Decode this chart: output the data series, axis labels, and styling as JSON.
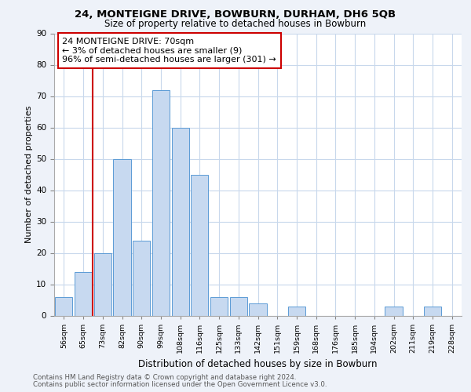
{
  "title": "24, MONTEIGNE DRIVE, BOWBURN, DURHAM, DH6 5QB",
  "subtitle": "Size of property relative to detached houses in Bowburn",
  "xlabel": "Distribution of detached houses by size in Bowburn",
  "ylabel": "Number of detached properties",
  "bin_labels": [
    "56sqm",
    "65sqm",
    "73sqm",
    "82sqm",
    "90sqm",
    "99sqm",
    "108sqm",
    "116sqm",
    "125sqm",
    "133sqm",
    "142sqm",
    "151sqm",
    "159sqm",
    "168sqm",
    "176sqm",
    "185sqm",
    "194sqm",
    "202sqm",
    "211sqm",
    "219sqm",
    "228sqm"
  ],
  "bar_heights": [
    6,
    14,
    20,
    50,
    24,
    72,
    60,
    45,
    6,
    6,
    4,
    0,
    3,
    0,
    0,
    0,
    0,
    3,
    0,
    3,
    0
  ],
  "bar_color": "#c7d9f0",
  "bar_edge_color": "#5b9bd5",
  "vline_pos": 1.5,
  "vline_color": "#cc0000",
  "ylim": [
    0,
    90
  ],
  "yticks": [
    0,
    10,
    20,
    30,
    40,
    50,
    60,
    70,
    80,
    90
  ],
  "annotation_line1": "24 MONTEIGNE DRIVE: 70sqm",
  "annotation_line2": "← 3% of detached houses are smaller (9)",
  "annotation_line3": "96% of semi-detached houses are larger (301) →",
  "annotation_box_color": "#ffffff",
  "annotation_box_edge": "#cc0000",
  "footer_line1": "Contains HM Land Registry data © Crown copyright and database right 2024.",
  "footer_line2": "Contains public sector information licensed under the Open Government Licence v3.0.",
  "background_color": "#eef2f9",
  "plot_bg_color": "#ffffff",
  "grid_color": "#c8d8ec",
  "title_fontsize": 9.5,
  "subtitle_fontsize": 8.5,
  "ylabel_fontsize": 8.0,
  "xlabel_fontsize": 8.5,
  "tick_fontsize": 7.5,
  "xtick_fontsize": 6.8,
  "annotation_fontsize": 8.0,
  "footer_fontsize": 6.2
}
